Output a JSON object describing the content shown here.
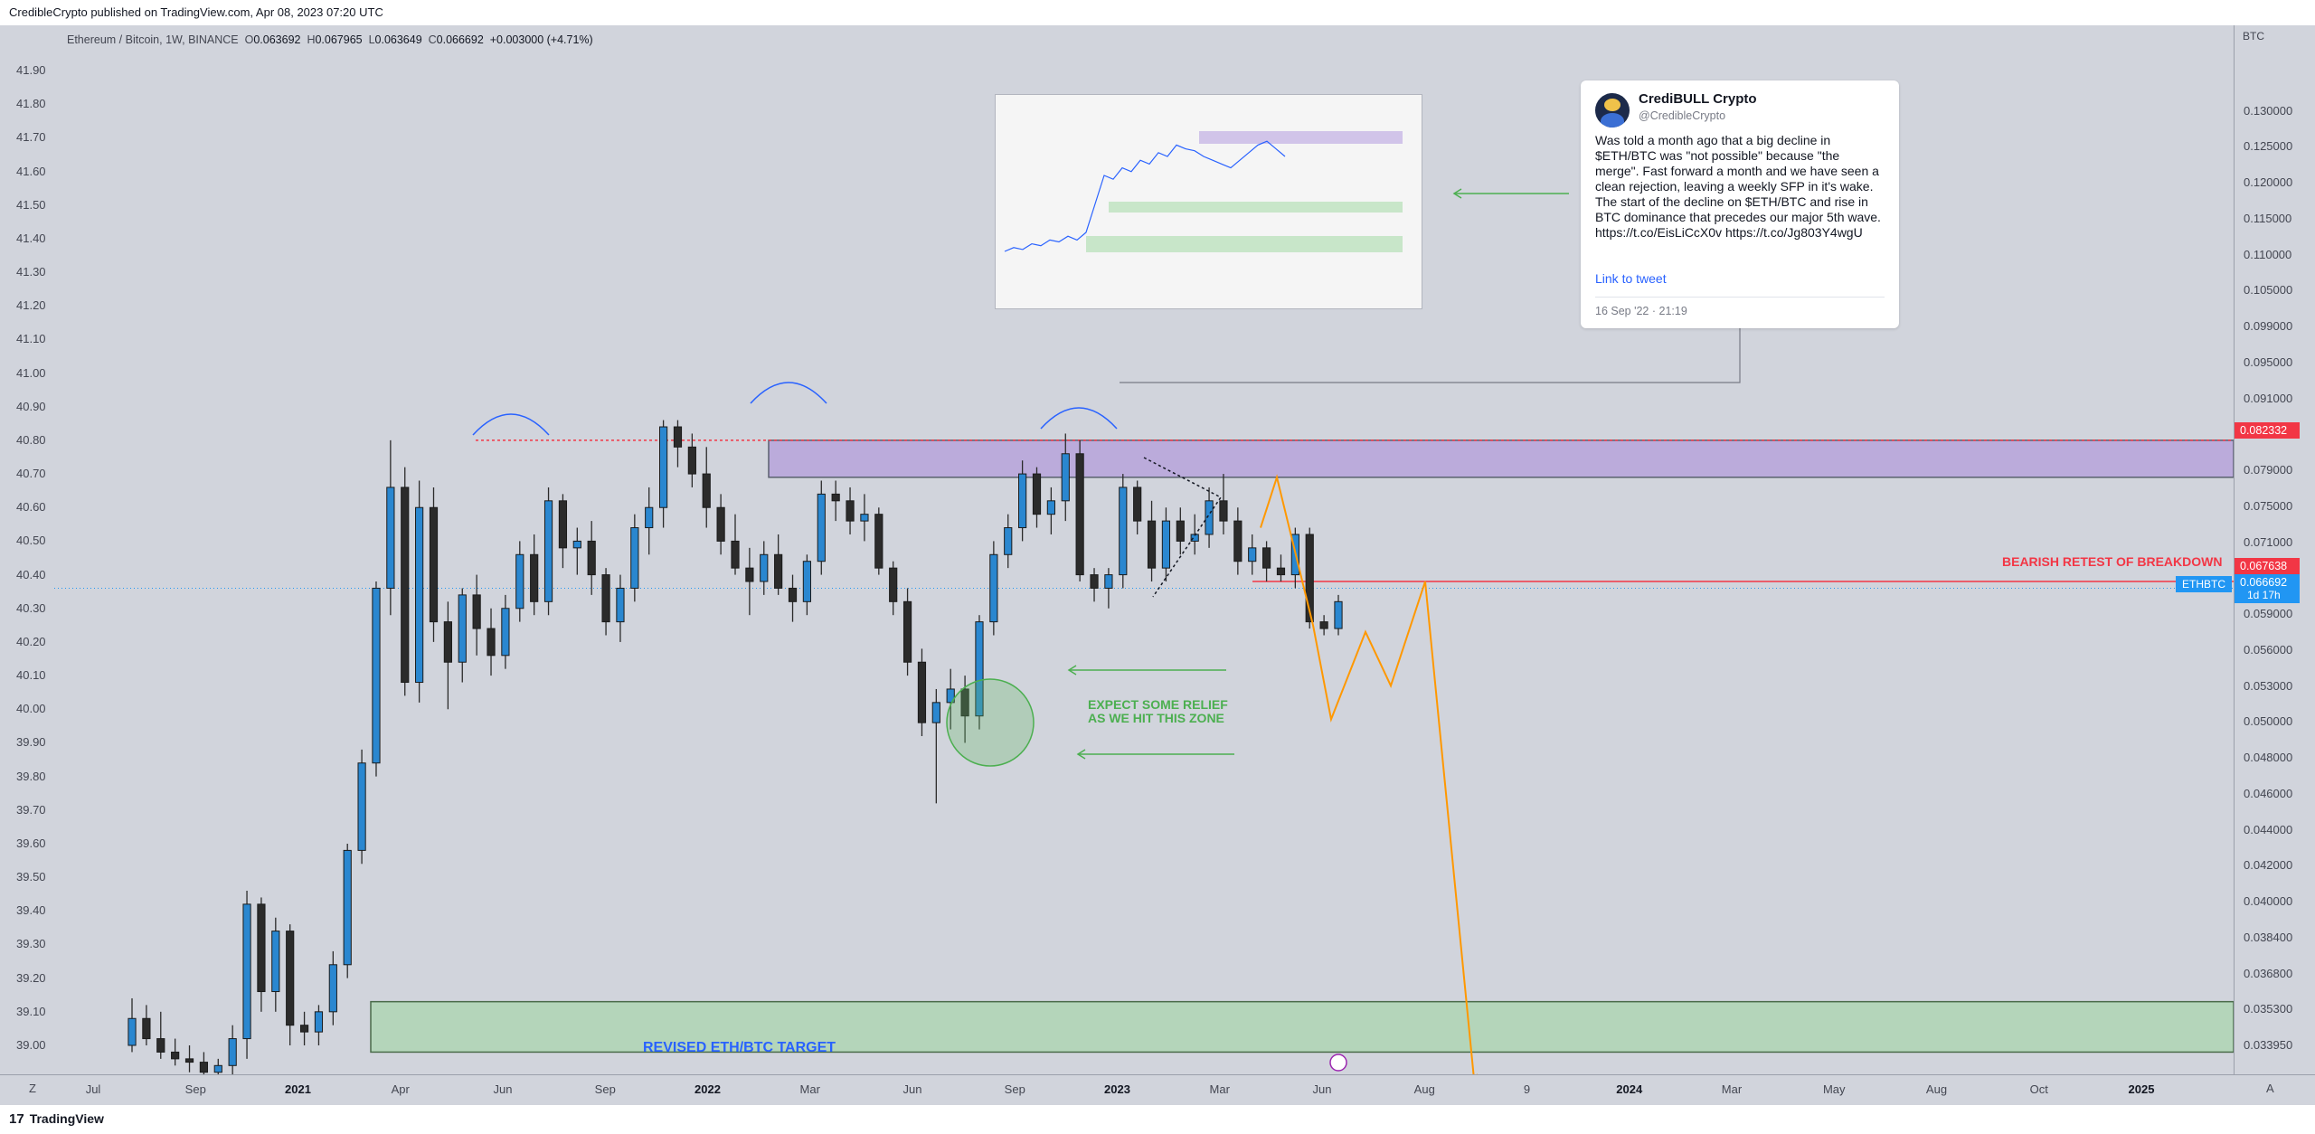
{
  "publisher": "CredibleCrypto published on TradingView.com, Apr 08, 2023 07:20 UTC",
  "symbol": {
    "name": "Ethereum / Bitcoin, 1W, BINANCE",
    "open_label": "O",
    "open": "0.063692",
    "high_label": "H",
    "high": "0.067965",
    "low_label": "L",
    "low": "0.063649",
    "close_label": "C",
    "close": "0.066692",
    "change": "+0.003000 (+4.71%)"
  },
  "axis_unit": "BTC",
  "left_axis_ticks": [
    "41.90",
    "41.80",
    "41.70",
    "41.60",
    "41.50",
    "41.40",
    "41.30",
    "41.20",
    "41.10",
    "41.00",
    "40.90",
    "40.80",
    "40.70",
    "40.60",
    "40.50",
    "40.40",
    "40.30",
    "40.20",
    "40.10",
    "40.00",
    "39.90",
    "39.80",
    "39.70",
    "39.60",
    "39.50",
    "39.40",
    "39.30",
    "39.20",
    "39.10",
    "39.00"
  ],
  "right_axis_ticks": [
    "0.130000",
    "0.125000",
    "0.120000",
    "0.115000",
    "0.110000",
    "0.105000",
    "0.099000",
    "0.095000",
    "0.091000",
    "0.087000",
    "0.079000",
    "0.075000",
    "0.071000",
    "0.062000",
    "0.059000",
    "0.056000",
    "0.053000",
    "0.050000",
    "0.048000",
    "0.046000",
    "0.044000",
    "0.042000",
    "0.040000",
    "0.038400",
    "0.036800",
    "0.035300",
    "0.033950"
  ],
  "bottom_axis_ticks": [
    {
      "label": "Jul",
      "bold": false
    },
    {
      "label": "Sep",
      "bold": false
    },
    {
      "label": "2021",
      "bold": true
    },
    {
      "label": "Apr",
      "bold": false
    },
    {
      "label": "Jun",
      "bold": false
    },
    {
      "label": "Sep",
      "bold": false
    },
    {
      "label": "2022",
      "bold": true
    },
    {
      "label": "Mar",
      "bold": false
    },
    {
      "label": "Jun",
      "bold": false
    },
    {
      "label": "Sep",
      "bold": false
    },
    {
      "label": "2023",
      "bold": true
    },
    {
      "label": "Mar",
      "bold": false
    },
    {
      "label": "Jun",
      "bold": false
    },
    {
      "label": "Aug",
      "bold": false
    },
    {
      "label": "9",
      "bold": false
    },
    {
      "label": "2024",
      "bold": true
    },
    {
      "label": "Mar",
      "bold": false
    },
    {
      "label": "May",
      "bold": false
    },
    {
      "label": "Aug",
      "bold": false
    },
    {
      "label": "Oct",
      "bold": false
    },
    {
      "label": "2025",
      "bold": true
    }
  ],
  "price_tags": {
    "resistance": "0.082332",
    "breakdown": "0.067638",
    "last": "0.066692",
    "countdown": "1d 17h",
    "symbol": "ETHBTC"
  },
  "annotations": {
    "breakdown": "BEARISH RETEST OF BREAKDOWN",
    "relief_line1": "EXPECT SOME RELIEF",
    "relief_line2": "AS WE HIT THIS ZONE",
    "target": "REVISED ETH/BTC TARGET"
  },
  "tweet": {
    "name": "CrediBULL Crypto",
    "handle": "@CredibleCrypto",
    "body": "Was told a month ago that a big decline in $ETH/BTC was \"not possible\" because \"the merge\". Fast forward a month and we have seen a clean rejection, leaving a weekly SFP in it's wake. The start of the decline on $ETH/BTC and rise in BTC dominance that precedes our major 5th wave. https://t.co/EisLiCcX0v https://t.co/Jg803Y4wgU",
    "link": "Link to tweet",
    "date": "16 Sep '22 · 21:19"
  },
  "footer": {
    "brand": "TradingView",
    "zoom_label": "Z",
    "scale_label": "A"
  },
  "colors": {
    "up": "#2a87d0",
    "down": "#2b2b2b",
    "resistance_zone": "#b39ddb",
    "target_zone": "#a5d6a7",
    "projection": "#ff9800",
    "breakdown": "#f23645"
  },
  "chart_data": {
    "type": "candlestick",
    "title": "Ethereum / Bitcoin, 1W, BINANCE",
    "xlabel": "",
    "ylabel": "BTC",
    "left_ylim": [
      39.0,
      41.9
    ],
    "candles": [
      [
        39.0,
        39.14,
        38.98,
        39.08
      ],
      [
        39.08,
        39.12,
        39.0,
        39.02
      ],
      [
        39.02,
        39.1,
        38.96,
        38.98
      ],
      [
        38.98,
        39.02,
        38.94,
        38.96
      ],
      [
        38.96,
        39.0,
        38.92,
        38.95
      ],
      [
        38.95,
        38.98,
        38.9,
        38.92
      ],
      [
        38.92,
        38.96,
        38.88,
        38.94
      ],
      [
        38.94,
        39.06,
        38.9,
        39.02
      ],
      [
        39.02,
        39.46,
        38.96,
        39.42
      ],
      [
        39.42,
        39.44,
        39.1,
        39.16
      ],
      [
        39.16,
        39.38,
        39.1,
        39.34
      ],
      [
        39.34,
        39.36,
        39.0,
        39.06
      ],
      [
        39.06,
        39.1,
        39.0,
        39.04
      ],
      [
        39.04,
        39.12,
        39.0,
        39.1
      ],
      [
        39.1,
        39.28,
        39.06,
        39.24
      ],
      [
        39.24,
        39.6,
        39.2,
        39.58
      ],
      [
        39.58,
        39.88,
        39.54,
        39.84
      ],
      [
        39.84,
        40.38,
        39.8,
        40.36
      ],
      [
        40.36,
        40.8,
        40.28,
        40.66
      ],
      [
        40.66,
        40.72,
        40.04,
        40.08
      ],
      [
        40.08,
        40.68,
        40.02,
        40.6
      ],
      [
        40.6,
        40.66,
        40.2,
        40.26
      ],
      [
        40.26,
        40.32,
        40.0,
        40.14
      ],
      [
        40.14,
        40.36,
        40.08,
        40.34
      ],
      [
        40.34,
        40.4,
        40.16,
        40.24
      ],
      [
        40.24,
        40.3,
        40.1,
        40.16
      ],
      [
        40.16,
        40.34,
        40.12,
        40.3
      ],
      [
        40.3,
        40.5,
        40.26,
        40.46
      ],
      [
        40.46,
        40.52,
        40.28,
        40.32
      ],
      [
        40.32,
        40.66,
        40.28,
        40.62
      ],
      [
        40.62,
        40.64,
        40.42,
        40.48
      ],
      [
        40.48,
        40.54,
        40.4,
        40.5
      ],
      [
        40.5,
        40.56,
        40.34,
        40.4
      ],
      [
        40.4,
        40.42,
        40.22,
        40.26
      ],
      [
        40.26,
        40.4,
        40.2,
        40.36
      ],
      [
        40.36,
        40.58,
        40.32,
        40.54
      ],
      [
        40.54,
        40.66,
        40.46,
        40.6
      ],
      [
        40.6,
        40.86,
        40.54,
        40.84
      ],
      [
        40.84,
        40.86,
        40.72,
        40.78
      ],
      [
        40.78,
        40.82,
        40.66,
        40.7
      ],
      [
        40.7,
        40.78,
        40.54,
        40.6
      ],
      [
        40.6,
        40.64,
        40.46,
        40.5
      ],
      [
        40.5,
        40.58,
        40.4,
        40.42
      ],
      [
        40.42,
        40.48,
        40.28,
        40.38
      ],
      [
        40.38,
        40.5,
        40.34,
        40.46
      ],
      [
        40.46,
        40.52,
        40.34,
        40.36
      ],
      [
        40.36,
        40.4,
        40.26,
        40.32
      ],
      [
        40.32,
        40.46,
        40.28,
        40.44
      ],
      [
        40.44,
        40.68,
        40.4,
        40.64
      ],
      [
        40.64,
        40.68,
        40.56,
        40.62
      ],
      [
        40.62,
        40.66,
        40.52,
        40.56
      ],
      [
        40.56,
        40.64,
        40.5,
        40.58
      ],
      [
        40.58,
        40.6,
        40.4,
        40.42
      ],
      [
        40.42,
        40.44,
        40.28,
        40.32
      ],
      [
        40.32,
        40.36,
        40.1,
        40.14
      ],
      [
        40.14,
        40.18,
        39.92,
        39.96
      ],
      [
        39.96,
        40.06,
        39.72,
        40.02
      ],
      [
        40.02,
        40.12,
        39.94,
        40.06
      ],
      [
        40.06,
        40.1,
        39.9,
        39.98
      ],
      [
        39.98,
        40.28,
        39.94,
        40.26
      ],
      [
        40.26,
        40.5,
        40.22,
        40.46
      ],
      [
        40.46,
        40.58,
        40.42,
        40.54
      ],
      [
        40.54,
        40.74,
        40.5,
        40.7
      ],
      [
        40.7,
        40.72,
        40.54,
        40.58
      ],
      [
        40.58,
        40.66,
        40.52,
        40.62
      ],
      [
        40.62,
        40.82,
        40.56,
        40.76
      ],
      [
        40.76,
        40.8,
        40.38,
        40.4
      ],
      [
        40.4,
        40.42,
        40.32,
        40.36
      ],
      [
        40.36,
        40.42,
        40.3,
        40.4
      ],
      [
        40.4,
        40.7,
        40.36,
        40.66
      ],
      [
        40.66,
        40.68,
        40.52,
        40.56
      ],
      [
        40.56,
        40.62,
        40.38,
        40.42
      ],
      [
        40.42,
        40.6,
        40.38,
        40.56
      ],
      [
        40.56,
        40.6,
        40.46,
        40.5
      ],
      [
        40.5,
        40.58,
        40.46,
        40.52
      ],
      [
        40.52,
        40.66,
        40.48,
        40.62
      ],
      [
        40.62,
        40.7,
        40.52,
        40.56
      ],
      [
        40.56,
        40.6,
        40.4,
        40.44
      ],
      [
        40.44,
        40.52,
        40.4,
        40.48
      ],
      [
        40.48,
        40.5,
        40.38,
        40.42
      ],
      [
        40.42,
        40.46,
        40.38,
        40.4
      ],
      [
        40.4,
        40.54,
        40.36,
        40.52
      ],
      [
        40.52,
        40.54,
        40.24,
        40.26
      ],
      [
        40.26,
        40.28,
        40.22,
        40.24
      ],
      [
        40.24,
        40.34,
        40.22,
        40.32
      ]
    ],
    "levels": {
      "resistance_top": 40.8,
      "resistance_bottom": 40.69,
      "breakdown": 40.38,
      "last": 40.36,
      "target_top": 39.13,
      "target_bottom": 38.98
    },
    "projection": [
      [
        40.54,
        0
      ],
      [
        40.69,
        1
      ],
      [
        40.25,
        4
      ],
      [
        39.97,
        5
      ],
      [
        40.23,
        6
      ],
      [
        40.07,
        7
      ],
      [
        40.38,
        8
      ],
      [
        38.9,
        10
      ]
    ],
    "mini_chart": {
      "type": "line",
      "values": [
        0.3,
        0.32,
        0.31,
        0.34,
        0.33,
        0.36,
        0.35,
        0.38,
        0.36,
        0.4,
        0.55,
        0.7,
        0.68,
        0.74,
        0.72,
        0.78,
        0.76,
        0.82,
        0.8,
        0.86,
        0.84,
        0.83,
        0.8,
        0.78,
        0.76,
        0.74,
        0.78,
        0.82,
        0.86,
        0.88,
        0.84,
        0.8
      ]
    }
  }
}
